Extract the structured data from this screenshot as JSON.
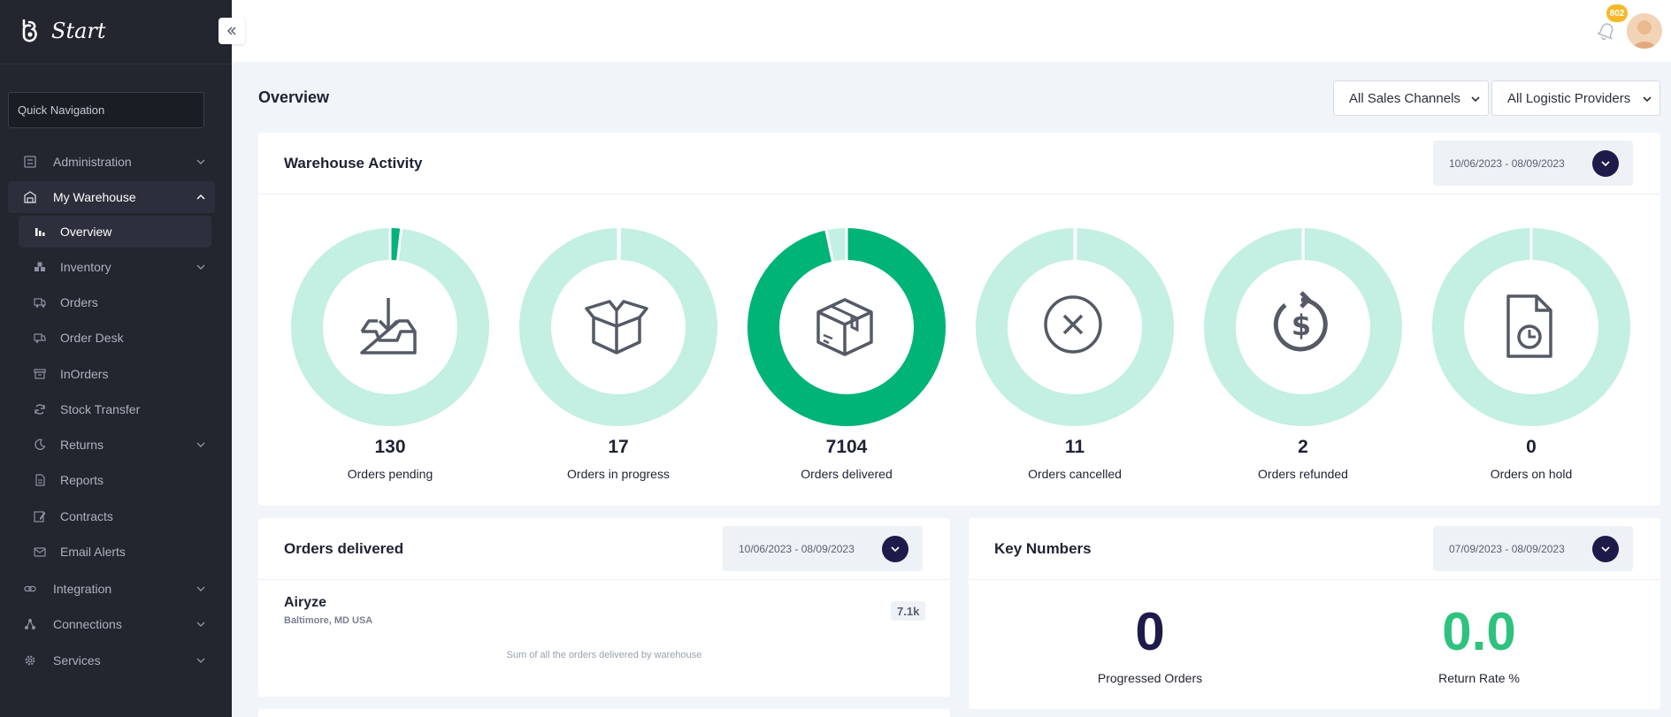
{
  "app": {
    "title": "Start"
  },
  "sidebar": {
    "quick_nav_placeholder": "Quick Navigation",
    "items": [
      {
        "label": "Administration"
      },
      {
        "label": "My Warehouse"
      },
      {
        "label": "Integration"
      },
      {
        "label": "Connections"
      },
      {
        "label": "Services"
      }
    ],
    "sub_items": [
      {
        "label": "Overview"
      },
      {
        "label": "Inventory"
      },
      {
        "label": "Orders"
      },
      {
        "label": "Order Desk"
      },
      {
        "label": "InOrders"
      },
      {
        "label": "Stock Transfer"
      },
      {
        "label": "Returns"
      },
      {
        "label": "Reports"
      },
      {
        "label": "Contracts"
      },
      {
        "label": "Email Alerts"
      }
    ]
  },
  "topbar": {
    "notification_count": "802"
  },
  "page": {
    "title": "Overview",
    "filters": {
      "sales_channel": "All Sales Channels",
      "logistic_provider": "All Logistic Providers"
    }
  },
  "warehouse_activity": {
    "title": "Warehouse Activity",
    "date_range": "10/06/2023 - 08/09/2023",
    "stats": [
      {
        "value": "130",
        "label": "Orders pending",
        "fraction": 0.018,
        "icon": "inbox-download-icon"
      },
      {
        "value": "17",
        "label": "Orders in progress",
        "fraction": 0.0023,
        "icon": "open-box-icon"
      },
      {
        "value": "7104",
        "label": "Orders delivered",
        "fraction": 0.967,
        "icon": "package-icon"
      },
      {
        "value": "11",
        "label": "Orders cancelled",
        "fraction": 0.0015,
        "icon": "cancel-circle-icon"
      },
      {
        "value": "2",
        "label": "Orders refunded",
        "fraction": 0.0003,
        "icon": "refund-dollar-icon"
      },
      {
        "value": "0",
        "label": "Orders on hold",
        "fraction": 0,
        "icon": "file-clock-icon"
      }
    ],
    "colors": {
      "track": "#c4efe3",
      "fill": "#00b377"
    }
  },
  "orders_delivered": {
    "title": "Orders delivered",
    "date_range": "10/06/2023 - 08/09/2023",
    "warehouse": {
      "name": "Airyze",
      "location": "Baltimore, MD USA",
      "count": "7.1k"
    },
    "note": "Sum of all the orders delivered by warehouse"
  },
  "key_numbers": {
    "title": "Key Numbers",
    "date_range": "07/09/2023 - 08/09/2023",
    "progressed_orders": {
      "value": "0",
      "label": "Progressed Orders",
      "color": "#1e1b4b"
    },
    "return_rate": {
      "value": "0.0",
      "label": "Return Rate %",
      "color": "#2ec27e"
    }
  }
}
